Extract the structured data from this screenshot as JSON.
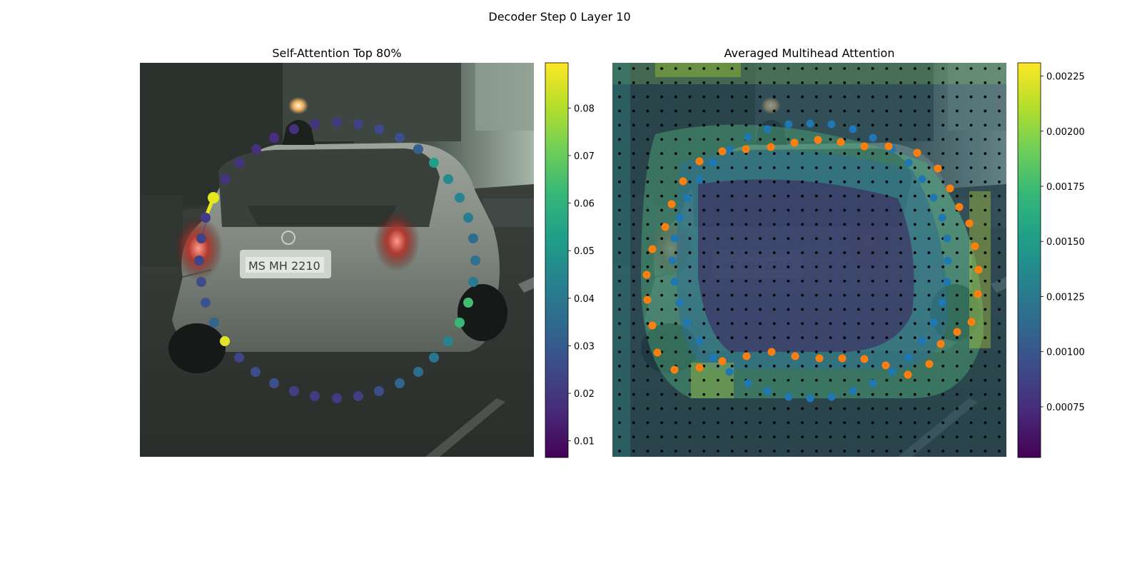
{
  "figure": {
    "title": "Decoder Step 0 Layer 10"
  },
  "colors": {
    "viridis": [
      "#440154",
      "#482878",
      "#3e4989",
      "#31688e",
      "#26828e",
      "#1f9e89",
      "#35b779",
      "#6ece58",
      "#b5de2b",
      "#fde725"
    ],
    "query_point": "#e6e61e",
    "series_blue": "#1f77b4",
    "series_orange": "#ff7f0e",
    "grid_dot": "#000000"
  },
  "chart_data": [
    {
      "type": "scatter",
      "title": "Self-Attention Top 80%",
      "background": "street scene image: rear view of a silver hatchback car on a city road",
      "colorbar": {
        "range": [
          0.0065,
          0.0895
        ],
        "ticks": [
          0.01,
          0.02,
          0.03,
          0.04,
          0.05,
          0.06,
          0.07,
          0.08
        ],
        "tick_labels": [
          "0.01",
          "0.02",
          "0.03",
          "0.04",
          "0.05",
          "0.06",
          "0.07",
          "0.08"
        ],
        "colormap": "viridis"
      },
      "query_index": 7,
      "points": [
        {
          "x": 472,
          "y": 171,
          "v": 0.021
        },
        {
          "x": 441,
          "y": 174,
          "v": 0.019
        },
        {
          "x": 412,
          "y": 181,
          "v": 0.018
        },
        {
          "x": 384,
          "y": 193,
          "v": 0.018
        },
        {
          "x": 359,
          "y": 209,
          "v": 0.018
        },
        {
          "x": 335,
          "y": 228,
          "v": 0.019
        },
        {
          "x": 316,
          "y": 251,
          "v": 0.019
        },
        {
          "x": 299,
          "y": 277,
          "v": 0.02
        },
        {
          "x": 288,
          "y": 305,
          "v": 0.021
        },
        {
          "x": 282,
          "y": 334,
          "v": 0.023
        },
        {
          "x": 279,
          "y": 365,
          "v": 0.024
        },
        {
          "x": 282,
          "y": 395,
          "v": 0.026
        },
        {
          "x": 288,
          "y": 424,
          "v": 0.028
        },
        {
          "x": 300,
          "y": 452,
          "v": 0.033
        },
        {
          "x": 315,
          "y": 478,
          "v": 0.086
        },
        {
          "x": 335,
          "y": 501,
          "v": 0.024
        },
        {
          "x": 358,
          "y": 521,
          "v": 0.026
        },
        {
          "x": 384,
          "y": 537,
          "v": 0.027
        },
        {
          "x": 412,
          "y": 548,
          "v": 0.022
        },
        {
          "x": 441,
          "y": 555,
          "v": 0.021
        },
        {
          "x": 472,
          "y": 558,
          "v": 0.021
        },
        {
          "x": 502,
          "y": 555,
          "v": 0.022
        },
        {
          "x": 531,
          "y": 548,
          "v": 0.026
        },
        {
          "x": 560,
          "y": 537,
          "v": 0.033
        },
        {
          "x": 586,
          "y": 521,
          "v": 0.036
        },
        {
          "x": 608,
          "y": 501,
          "v": 0.039
        },
        {
          "x": 628,
          "y": 478,
          "v": 0.044
        },
        {
          "x": 644,
          "y": 452,
          "v": 0.062
        },
        {
          "x": 656,
          "y": 424,
          "v": 0.064
        },
        {
          "x": 663,
          "y": 395,
          "v": 0.041
        },
        {
          "x": 666,
          "y": 365,
          "v": 0.037
        },
        {
          "x": 663,
          "y": 334,
          "v": 0.036
        },
        {
          "x": 656,
          "y": 305,
          "v": 0.041
        },
        {
          "x": 644,
          "y": 277,
          "v": 0.044
        },
        {
          "x": 628,
          "y": 251,
          "v": 0.046
        },
        {
          "x": 608,
          "y": 228,
          "v": 0.053
        },
        {
          "x": 586,
          "y": 209,
          "v": 0.032
        },
        {
          "x": 560,
          "y": 193,
          "v": 0.027
        },
        {
          "x": 531,
          "y": 181,
          "v": 0.025
        },
        {
          "x": 502,
          "y": 174,
          "v": 0.023
        }
      ]
    },
    {
      "type": "heatmap",
      "title": "Averaged Multihead Attention",
      "background": "same street scene image, overlaid with attention heatmap and a 28x28 grid of black reference points",
      "grid": {
        "rows": 28,
        "cols": 28
      },
      "colorbar": {
        "range": [
          0.00052,
          0.00231
        ],
        "ticks": [
          0.00075,
          0.001,
          0.00125,
          0.0015,
          0.00175,
          0.002,
          0.00225
        ],
        "tick_labels": [
          "0.00075",
          "0.00100",
          "0.00125",
          "0.00150",
          "0.00175",
          "0.00200",
          "0.00225"
        ],
        "colormap": "viridis"
      },
      "series": [
        {
          "name": "",
          "color": "blue",
          "points": [
            [
              1048,
              192
            ],
            [
              1075,
              181
            ],
            [
              1105,
              174
            ],
            [
              1135,
              173
            ],
            [
              1165,
              174
            ],
            [
              1195,
              181
            ],
            [
              1223,
              193
            ],
            [
              1250,
              209
            ],
            [
              1273,
              228
            ],
            [
              1292,
              251
            ],
            [
              1308,
              277
            ],
            [
              1320,
              305
            ],
            [
              1327,
              334
            ],
            [
              1328,
              365
            ],
            [
              1327,
              395
            ],
            [
              1320,
              424
            ],
            [
              1308,
              452
            ],
            [
              1292,
              478
            ],
            [
              1273,
              501
            ],
            [
              1250,
              521
            ],
            [
              1223,
              537
            ],
            [
              1195,
              548
            ],
            [
              1165,
              556
            ],
            [
              1135,
              558
            ],
            [
              1105,
              556
            ],
            [
              1075,
              548
            ],
            [
              1048,
              537
            ],
            [
              1022,
              521
            ],
            [
              999,
              501
            ],
            [
              980,
              478
            ],
            [
              963,
              452
            ],
            [
              952,
              424
            ],
            [
              945,
              395
            ],
            [
              942,
              365
            ],
            [
              945,
              334
            ],
            [
              952,
              305
            ],
            [
              963,
              277
            ],
            [
              980,
              251
            ],
            [
              999,
              228
            ],
            [
              1022,
              209
            ]
          ]
        },
        {
          "name": "",
          "color": "orange",
          "points": [
            [
              1146,
              196
            ],
            [
              1178,
              199
            ],
            [
              1211,
              205
            ],
            [
              1245,
              205
            ],
            [
              1285,
              214
            ],
            [
              1314,
              236
            ],
            [
              1331,
              264
            ],
            [
              1344,
              290
            ],
            [
              1358,
              313
            ],
            [
              1366,
              345
            ],
            [
              1371,
              378
            ],
            [
              1370,
              412
            ],
            [
              1361,
              451
            ],
            [
              1341,
              465
            ],
            [
              1318,
              482
            ],
            [
              1302,
              510
            ],
            [
              1272,
              525
            ],
            [
              1241,
              512
            ],
            [
              1211,
              503
            ],
            [
              1180,
              502
            ],
            [
              1148,
              502
            ],
            [
              1114,
              499
            ],
            [
              1081,
              493
            ],
            [
              1046,
              499
            ],
            [
              1012,
              506
            ],
            [
              980,
              515
            ],
            [
              945,
              518
            ],
            [
              921,
              494
            ],
            [
              914,
              456
            ],
            [
              907,
              420
            ],
            [
              906,
              385
            ],
            [
              914,
              349
            ],
            [
              932,
              318
            ],
            [
              941,
              286
            ],
            [
              957,
              254
            ],
            [
              980,
              226
            ],
            [
              1012,
              212
            ],
            [
              1045,
              209
            ],
            [
              1080,
              206
            ],
            [
              1113,
              200
            ]
          ]
        }
      ]
    }
  ]
}
